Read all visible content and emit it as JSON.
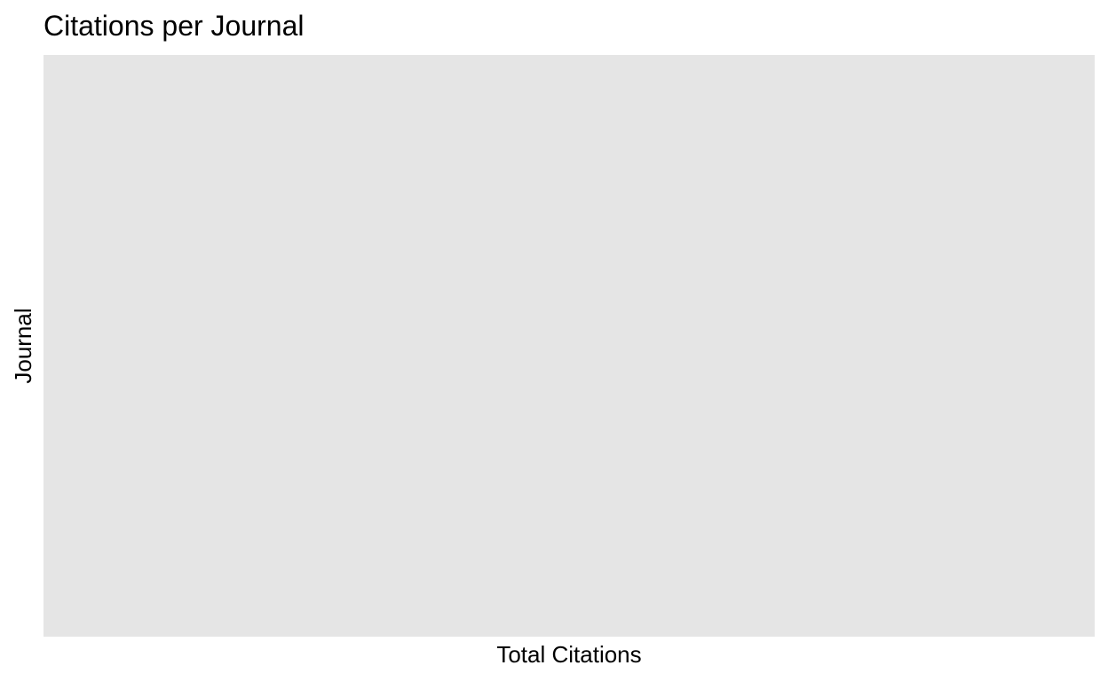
{
  "chart_data": {
    "type": "bar",
    "title": "Citations per Journal",
    "xlabel": "Total Citations",
    "ylabel": "Journal",
    "categories": [],
    "values": [],
    "grid": false,
    "panel_background": "#e5e5e5",
    "background": "#ffffff",
    "text_color": "#000000"
  }
}
